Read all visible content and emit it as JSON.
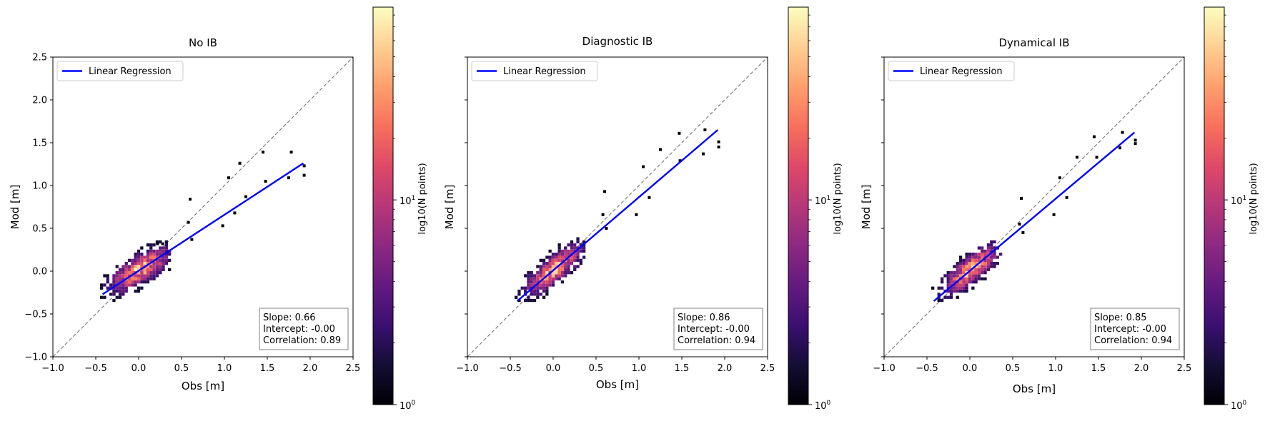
{
  "figure": {
    "legend_label": "Linear Regression",
    "colorbar": {
      "label": "log10(N points)",
      "tick_base": "10",
      "tick_exponents": [
        "0",
        "1"
      ],
      "colormap": [
        "#000004",
        "#140e36",
        "#3b0f70",
        "#641a80",
        "#8c2981",
        "#b73779",
        "#de4968",
        "#f7705c",
        "#fe9f6d",
        "#fecf92",
        "#fcfdbf"
      ]
    },
    "colors": {
      "regression": "#0000ff",
      "identity": "#808080"
    }
  },
  "chart_data": [
    {
      "type": "heatmap",
      "title": "No IB",
      "xlabel": "Obs [m]",
      "ylabel": "Mod [m]",
      "xlim": [
        -1.0,
        2.5
      ],
      "ylim": [
        -1.0,
        2.5
      ],
      "xticks": [
        "−1.0",
        "−0.5",
        "0.0",
        "0.5",
        "1.0",
        "1.5",
        "2.0",
        "2.5"
      ],
      "yticks": [
        "−1.0",
        "−0.5",
        "0.0",
        "0.5",
        "1.0",
        "1.5",
        "2.0",
        "2.5"
      ],
      "show_yticklabels": true,
      "regression": {
        "x": [
          -0.42,
          1.92
        ],
        "y": [
          -0.27,
          1.26
        ]
      },
      "stats": [
        "Slope: 0.66",
        "Intercept: -0.00",
        "Correlation: 0.89"
      ],
      "outliers": [
        [
          0.28,
          0.32
        ],
        [
          0.6,
          0.84
        ],
        [
          1.05,
          1.09
        ],
        [
          1.18,
          1.26
        ],
        [
          1.45,
          1.39
        ],
        [
          1.48,
          1.05
        ],
        [
          1.78,
          1.39
        ],
        [
          1.93,
          1.23
        ],
        [
          1.93,
          1.12
        ],
        [
          1.75,
          1.09
        ],
        [
          1.25,
          0.87
        ],
        [
          1.12,
          0.68
        ],
        [
          0.98,
          0.53
        ],
        [
          0.62,
          0.37
        ],
        [
          0.58,
          0.57
        ],
        [
          0.22,
          0.32
        ]
      ]
    },
    {
      "type": "heatmap",
      "title": "Diagnostic IB",
      "xlabel": "Obs [m]",
      "ylabel": "Mod [m]",
      "xlim": [
        -1.0,
        2.5
      ],
      "ylim": [
        -1.0,
        2.5
      ],
      "xticks": [
        "−1.0",
        "−0.5",
        "0.0",
        "0.5",
        "1.0",
        "1.5",
        "2.0",
        "2.5"
      ],
      "yticks": [],
      "show_yticklabels": false,
      "regression": {
        "x": [
          -0.42,
          1.92
        ],
        "y": [
          -0.35,
          1.65
        ]
      },
      "stats": [
        "Slope: 0.86",
        "Intercept: -0.00",
        "Correlation: 0.94"
      ],
      "outliers": [
        [
          0.6,
          0.93
        ],
        [
          1.05,
          1.22
        ],
        [
          1.25,
          1.42
        ],
        [
          1.47,
          1.61
        ],
        [
          1.77,
          1.65
        ],
        [
          1.93,
          1.51
        ],
        [
          1.93,
          1.45
        ],
        [
          1.75,
          1.37
        ],
        [
          1.12,
          0.86
        ],
        [
          0.97,
          0.66
        ],
        [
          0.62,
          0.5
        ],
        [
          0.58,
          0.66
        ],
        [
          1.48,
          1.29
        ]
      ]
    },
    {
      "type": "heatmap",
      "title": "Dynamical IB",
      "xlabel": "Obs [m]",
      "ylabel": "Mod [m]",
      "xlim": [
        -1.0,
        2.5
      ],
      "ylim": [
        -1.0,
        2.5
      ],
      "xticks": [
        "−1.0",
        "−0.5",
        "0.0",
        "0.5",
        "1.0",
        "1.5",
        "2.0",
        "2.5"
      ],
      "yticks": [],
      "show_yticklabels": false,
      "regression": {
        "x": [
          -0.42,
          1.92
        ],
        "y": [
          -0.35,
          1.62
        ]
      },
      "stats": [
        "Slope: 0.85",
        "Intercept: -0.00",
        "Correlation: 0.94"
      ],
      "outliers": [
        [
          0.6,
          0.85
        ],
        [
          1.05,
          1.09
        ],
        [
          1.25,
          1.33
        ],
        [
          1.45,
          1.57
        ],
        [
          1.78,
          1.62
        ],
        [
          1.93,
          1.53
        ],
        [
          1.93,
          1.49
        ],
        [
          1.75,
          1.44
        ],
        [
          1.13,
          0.86
        ],
        [
          0.98,
          0.66
        ],
        [
          0.62,
          0.45
        ],
        [
          0.58,
          0.55
        ],
        [
          1.48,
          1.33
        ]
      ]
    }
  ]
}
